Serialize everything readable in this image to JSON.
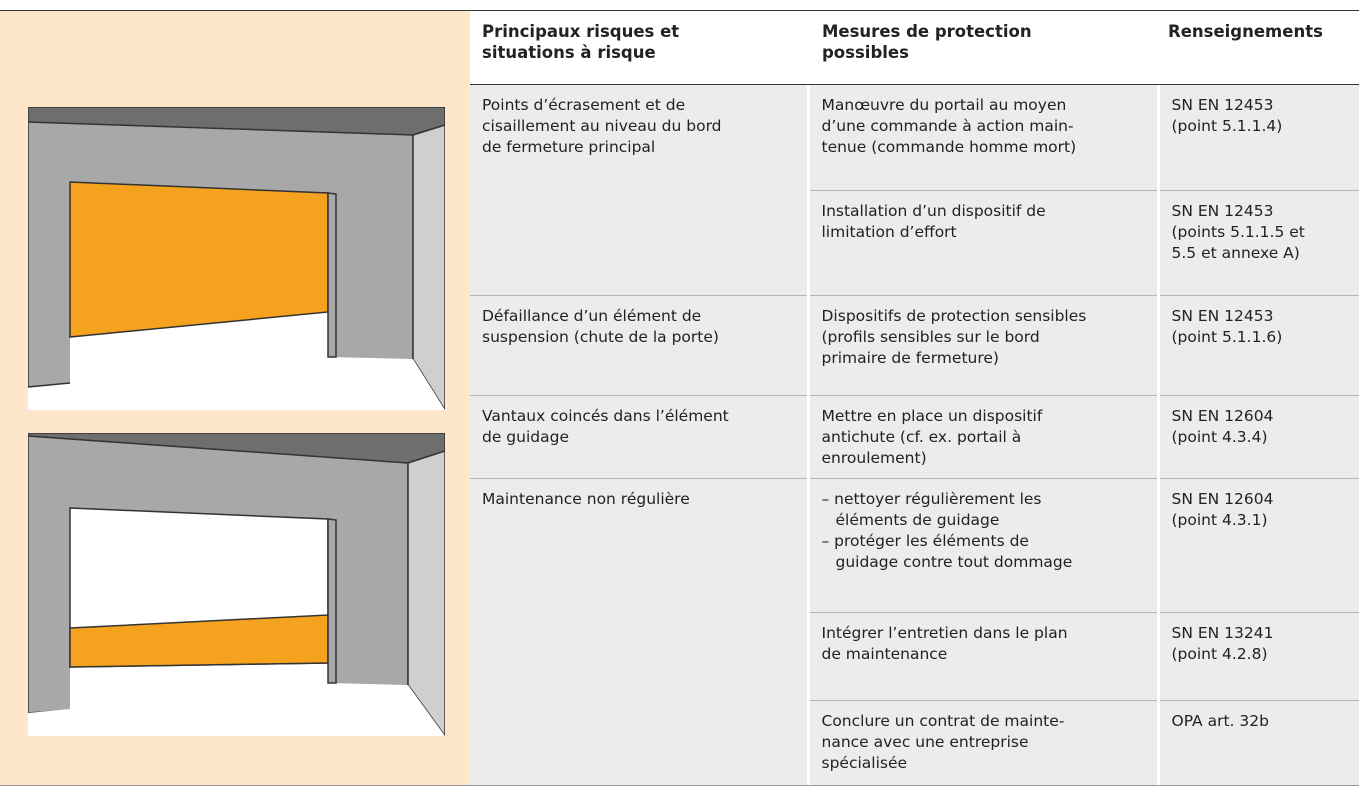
{
  "header": {
    "columns": [
      [
        "Principaux risques et",
        "situations à risque"
      ],
      [
        "Mesures de protection",
        "possibles"
      ],
      [
        "Renseignements"
      ]
    ]
  },
  "rows": [
    {
      "risk": [
        "Points d’écrasement et de",
        "cisaillement au niveau du bord",
        "de fermeture principal"
      ],
      "measures": [
        {
          "text": [
            "Manœuvre du portail au moyen",
            "d’une commande à action main-",
            "tenue (commande homme mort)"
          ],
          "reference": [
            "SN EN 12453",
            "(point 5.1.1.4)"
          ]
        },
        {
          "text": [
            "Installation d’un dispositif de",
            "limitation d’effort"
          ],
          "reference": [
            "SN EN 12453",
            "(points 5.1.1.5 et",
            "5.5 et annexe A)"
          ]
        }
      ]
    },
    {
      "risk": [
        "Défaillance d’un élément de",
        "suspension (chute de la porte)"
      ],
      "measures": [
        {
          "text": [
            "Dispositifs de protection sensibles",
            "(profils sensibles sur le bord",
            "primaire de fermeture)"
          ],
          "reference": [
            "SN EN 12453",
            "(point 5.1.1.6)"
          ]
        }
      ]
    },
    {
      "risk": [
        "Vantaux coincés dans l’élément",
        "de guidage"
      ],
      "measures": [
        {
          "text": [
            "Mettre en place un dispositif",
            "antichute (cf. ex. portail à",
            "enroulement)"
          ],
          "reference": [
            "SN EN 12604",
            "(point 4.3.4)"
          ]
        }
      ]
    },
    {
      "risk": [
        "Maintenance non régulière"
      ],
      "measures": [
        {
          "items": [
            [
              "– nettoyer régulièrement les",
              "éléments de guidage"
            ],
            [
              "– protéger les éléments de",
              "guidage contre tout dommage"
            ]
          ],
          "reference": [
            "SN EN 12604",
            "(point 4.3.1)"
          ]
        },
        {
          "text": [
            "Intégrer l’entretien dans le plan",
            "de maintenance"
          ],
          "reference": [
            "SN EN 13241",
            "(point 4.2.8)"
          ]
        },
        {
          "text": [
            "Conclure un contrat de mainte-",
            "nance avec une entreprise",
            "spécialisée"
          ],
          "reference": [
            "OPA art. 32b"
          ]
        }
      ]
    }
  ]
}
